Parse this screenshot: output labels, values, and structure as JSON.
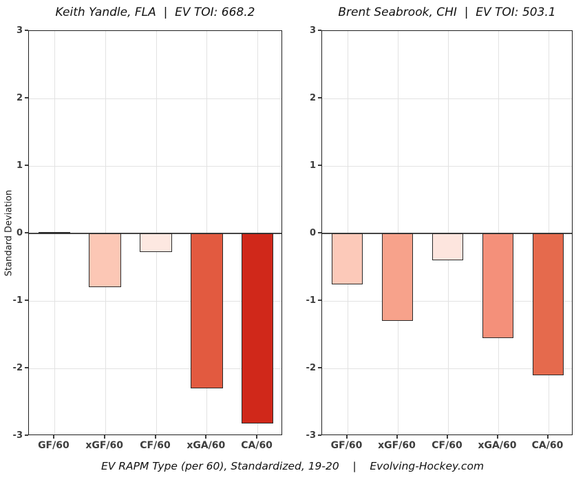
{
  "figure": {
    "background": "#ffffff",
    "ylabel": "Standard Deviation",
    "caption": "EV RAPM Type (per 60), Standardized, 19-20    |    Evolving-Hockey.com"
  },
  "colors": {
    "grid": "#e2e2e2",
    "frame": "#1f1f1f",
    "zero_line": "#454545",
    "bar_border": "#2a2a2a",
    "tick_text": "#3d3d3d",
    "title_text": "#111111"
  },
  "chart_data": [
    {
      "type": "bar",
      "title": "Keith Yandle, FLA  |  EV TOI: 668.2",
      "categories": [
        "GF/60",
        "xGF/60",
        "CF/60",
        "xGA/60",
        "CA/60"
      ],
      "values": [
        0.02,
        -0.8,
        -0.28,
        -2.3,
        -2.82
      ],
      "bar_colors": [
        "#fff5f0",
        "#fcc7b5",
        "#fde8e1",
        "#e25a40",
        "#d0281a"
      ],
      "ylabel": "Standard Deviation",
      "xlabel": "",
      "ylim": [
        -3,
        3
      ],
      "yticks": [
        3,
        2,
        1,
        0,
        -1,
        -2,
        -3
      ],
      "grid": true,
      "legend": false
    },
    {
      "type": "bar",
      "title": "Brent Seabrook, CHI  |  EV TOI: 503.1",
      "categories": [
        "GF/60",
        "xGF/60",
        "CF/60",
        "xGA/60",
        "CA/60"
      ],
      "values": [
        -0.75,
        -1.3,
        -0.4,
        -1.55,
        -2.1
      ],
      "bar_colors": [
        "#fcc9b9",
        "#f7a28b",
        "#fde5de",
        "#f4907a",
        "#e56a4d"
      ],
      "ylabel": "",
      "xlabel": "",
      "ylim": [
        -3,
        3
      ],
      "yticks": [
        3,
        2,
        1,
        0,
        -1,
        -2,
        -3
      ],
      "grid": true,
      "legend": false
    }
  ]
}
